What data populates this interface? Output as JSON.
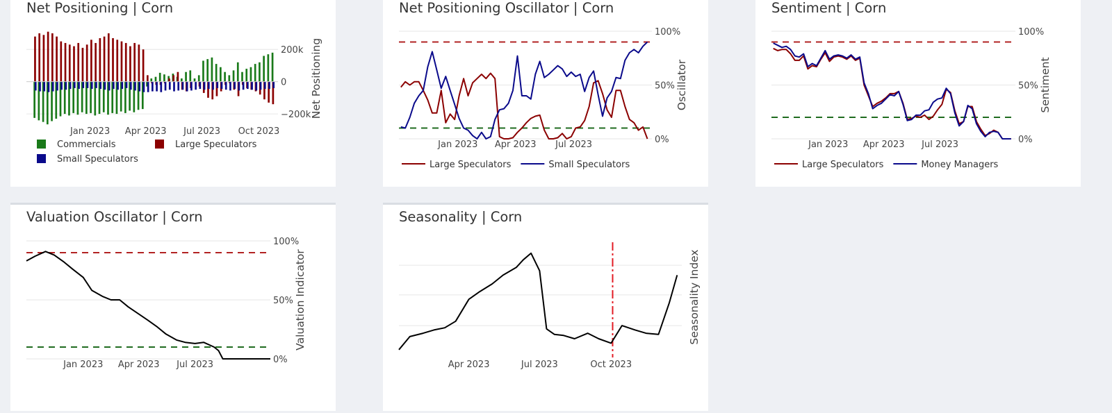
{
  "chart_data": [
    {
      "id": "net-positioning",
      "type": "bar",
      "title": "Net Positioning | Corn",
      "ylabel": "Net Positioning",
      "ylim": [
        -260000,
        300000
      ],
      "yticks": [
        {
          "v": 200000,
          "label": "200k"
        },
        {
          "v": 0,
          "label": "0"
        },
        {
          "v": -200000,
          "label": "−200k"
        }
      ],
      "xlim": [
        "2022-09-20",
        "2023-11-01"
      ],
      "xticks": [
        {
          "d": "2023-01-01",
          "label": "Jan 2023"
        },
        {
          "d": "2023-04-01",
          "label": "Apr 2023"
        },
        {
          "d": "2023-07-01",
          "label": "Jul 2023"
        },
        {
          "d": "2023-10-01",
          "label": "Oct 2023"
        }
      ],
      "legend_position": "bottom",
      "dates": [
        "2022-10-04",
        "2022-10-11",
        "2022-10-18",
        "2022-10-25",
        "2022-11-01",
        "2022-11-08",
        "2022-11-15",
        "2022-11-22",
        "2022-11-29",
        "2022-12-06",
        "2022-12-13",
        "2022-12-20",
        "2022-12-27",
        "2023-01-03",
        "2023-01-10",
        "2023-01-17",
        "2023-01-24",
        "2023-01-31",
        "2023-02-07",
        "2023-02-14",
        "2023-02-21",
        "2023-02-28",
        "2023-03-07",
        "2023-03-14",
        "2023-03-21",
        "2023-03-28",
        "2023-04-04",
        "2023-04-11",
        "2023-04-18",
        "2023-04-25",
        "2023-05-02",
        "2023-05-09",
        "2023-05-16",
        "2023-05-23",
        "2023-05-30",
        "2023-06-06",
        "2023-06-13",
        "2023-06-20",
        "2023-06-27",
        "2023-07-04",
        "2023-07-11",
        "2023-07-18",
        "2023-07-25",
        "2023-08-01",
        "2023-08-08",
        "2023-08-15",
        "2023-08-22",
        "2023-08-29",
        "2023-09-05",
        "2023-09-12",
        "2023-09-19",
        "2023-09-26",
        "2023-10-03",
        "2023-10-10",
        "2023-10-17",
        "2023-10-24"
      ],
      "series": [
        {
          "name": "Commercials",
          "color": "#1a7a1a",
          "values": [
            -225000,
            -240000,
            -250000,
            -265000,
            -245000,
            -230000,
            -215000,
            -200000,
            -210000,
            -195000,
            -205000,
            -190000,
            -200000,
            -195000,
            -210000,
            -200000,
            -190000,
            -205000,
            -195000,
            -200000,
            -185000,
            -195000,
            -180000,
            -190000,
            -175000,
            -170000,
            -30000,
            20000,
            30000,
            55000,
            45000,
            35000,
            50000,
            30000,
            20000,
            60000,
            70000,
            20000,
            40000,
            130000,
            140000,
            150000,
            110000,
            90000,
            60000,
            40000,
            70000,
            120000,
            60000,
            80000,
            90000,
            110000,
            120000,
            160000,
            170000,
            180000
          ]
        },
        {
          "name": "Large Speculators",
          "color": "#8b0000",
          "values": [
            280000,
            300000,
            290000,
            310000,
            300000,
            280000,
            250000,
            240000,
            230000,
            220000,
            240000,
            210000,
            230000,
            260000,
            240000,
            270000,
            280000,
            300000,
            270000,
            260000,
            250000,
            240000,
            220000,
            240000,
            230000,
            200000,
            40000,
            -10000,
            -20000,
            -20000,
            -10000,
            20000,
            40000,
            60000,
            -50000,
            -60000,
            -40000,
            0,
            -30000,
            -70000,
            -100000,
            -110000,
            -90000,
            -60000,
            -20000,
            -10000,
            -50000,
            -90000,
            -20000,
            -40000,
            -50000,
            -60000,
            -80000,
            -110000,
            -130000,
            -140000
          ]
        },
        {
          "name": "Small Speculators",
          "color": "#0a0a8b",
          "values": [
            -55000,
            -60000,
            -60000,
            -65000,
            -60000,
            -55000,
            -50000,
            -50000,
            -45000,
            -40000,
            -45000,
            -40000,
            -40000,
            -45000,
            -40000,
            -45000,
            -50000,
            -55000,
            -45000,
            -50000,
            -45000,
            -40000,
            -50000,
            -55000,
            -60000,
            -65000,
            -65000,
            -60000,
            -60000,
            -65000,
            -55000,
            -50000,
            -60000,
            -55000,
            -50000,
            -60000,
            -55000,
            -50000,
            -45000,
            -50000,
            -45000,
            -50000,
            -40000,
            -45000,
            -50000,
            -55000,
            -45000,
            -55000,
            -50000,
            -45000,
            -50000,
            -55000,
            -50000,
            -45000,
            -45000,
            -40000
          ]
        }
      ]
    },
    {
      "id": "net-positioning-oscillator",
      "type": "line",
      "title": "Net Positioning Oscillator | Corn",
      "ylabel": "Oscillator",
      "ylim": [
        0,
        100
      ],
      "yticks": [
        {
          "v": 100,
          "label": "100%"
        },
        {
          "v": 50,
          "label": "50%"
        },
        {
          "v": 0,
          "label": "0%"
        }
      ],
      "xlim": [
        "2022-10-01",
        "2023-10-31"
      ],
      "xticks": [
        {
          "d": "2023-01-01",
          "label": "Jan 2023"
        },
        {
          "d": "2023-04-01",
          "label": "Apr 2023"
        },
        {
          "d": "2023-07-01",
          "label": "Jul 2023"
        }
      ],
      "hlines": [
        {
          "v": 90,
          "color": "#b22222"
        },
        {
          "v": 10,
          "color": "#1f6b1f"
        }
      ],
      "legend_position": "bottom",
      "x": [
        "2022-10-04",
        "2022-10-11",
        "2022-10-18",
        "2022-10-25",
        "2022-11-01",
        "2022-11-08",
        "2022-11-15",
        "2022-11-22",
        "2022-11-29",
        "2022-12-06",
        "2022-12-13",
        "2022-12-20",
        "2022-12-27",
        "2023-01-03",
        "2023-01-10",
        "2023-01-17",
        "2023-01-24",
        "2023-01-31",
        "2023-02-07",
        "2023-02-14",
        "2023-02-21",
        "2023-02-28",
        "2023-03-07",
        "2023-03-14",
        "2023-03-21",
        "2023-03-28",
        "2023-04-04",
        "2023-04-11",
        "2023-04-18",
        "2023-04-25",
        "2023-05-02",
        "2023-05-09",
        "2023-05-16",
        "2023-05-23",
        "2023-05-30",
        "2023-06-06",
        "2023-06-13",
        "2023-06-20",
        "2023-06-27",
        "2023-07-04",
        "2023-07-11",
        "2023-07-18",
        "2023-07-25",
        "2023-08-01",
        "2023-08-08",
        "2023-08-15",
        "2023-08-22",
        "2023-08-29",
        "2023-09-05",
        "2023-09-12",
        "2023-09-19",
        "2023-09-26",
        "2023-10-03",
        "2023-10-10",
        "2023-10-17",
        "2023-10-24"
      ],
      "series": [
        {
          "name": "Large Speculators",
          "color": "#8b0000",
          "values": [
            48,
            53,
            50,
            53,
            53,
            45,
            36,
            24,
            24,
            45,
            15,
            23,
            18,
            40,
            56,
            40,
            52,
            56,
            60,
            56,
            61,
            56,
            2,
            0,
            0,
            1,
            6,
            10,
            15,
            19,
            21,
            22,
            8,
            0,
            0,
            1,
            5,
            0,
            2,
            10,
            11,
            17,
            30,
            52,
            54,
            42,
            27,
            20,
            45,
            45,
            30,
            18,
            15,
            8,
            11,
            0
          ]
        },
        {
          "name": "Small Speculators",
          "color": "#0a0a8b",
          "values": [
            11,
            10,
            20,
            33,
            40,
            45,
            67,
            81,
            64,
            47,
            58,
            45,
            32,
            19,
            10,
            8,
            3,
            0,
            6,
            0,
            2,
            18,
            27,
            28,
            33,
            45,
            77,
            40,
            40,
            37,
            60,
            72,
            57,
            60,
            64,
            68,
            65,
            58,
            62,
            58,
            60,
            44,
            57,
            63,
            41,
            21,
            38,
            44,
            57,
            56,
            73,
            80,
            83,
            80,
            86,
            90
          ]
        }
      ]
    },
    {
      "id": "sentiment",
      "type": "line",
      "title": "Sentiment | Corn",
      "ylabel": "Sentiment",
      "ylim": [
        0,
        100
      ],
      "yticks": [
        {
          "v": 100,
          "label": "100%"
        },
        {
          "v": 50,
          "label": "50%"
        },
        {
          "v": 0,
          "label": "0%"
        }
      ],
      "xlim": [
        "2022-10-01",
        "2023-10-31"
      ],
      "xticks": [
        {
          "d": "2023-01-01",
          "label": "Jan 2023"
        },
        {
          "d": "2023-04-01",
          "label": "Apr 2023"
        },
        {
          "d": "2023-07-01",
          "label": "Jul 2023"
        }
      ],
      "hlines": [
        {
          "v": 90,
          "color": "#b22222"
        },
        {
          "v": 20,
          "color": "#1f6b1f"
        }
      ],
      "legend_position": "bottom",
      "x": [
        "2022-10-04",
        "2022-10-11",
        "2022-10-18",
        "2022-10-25",
        "2022-11-01",
        "2022-11-08",
        "2022-11-15",
        "2022-11-22",
        "2022-11-29",
        "2022-12-06",
        "2022-12-13",
        "2022-12-20",
        "2022-12-27",
        "2023-01-03",
        "2023-01-10",
        "2023-01-17",
        "2023-01-24",
        "2023-01-31",
        "2023-02-07",
        "2023-02-14",
        "2023-02-21",
        "2023-02-28",
        "2023-03-07",
        "2023-03-14",
        "2023-03-21",
        "2023-03-28",
        "2023-04-04",
        "2023-04-11",
        "2023-04-18",
        "2023-04-25",
        "2023-05-02",
        "2023-05-09",
        "2023-05-16",
        "2023-05-23",
        "2023-05-30",
        "2023-06-06",
        "2023-06-13",
        "2023-06-20",
        "2023-06-27",
        "2023-07-04",
        "2023-07-11",
        "2023-07-18",
        "2023-07-25",
        "2023-08-01",
        "2023-08-08",
        "2023-08-15",
        "2023-08-22",
        "2023-08-29",
        "2023-09-05",
        "2023-09-12",
        "2023-09-19",
        "2023-09-26",
        "2023-10-03",
        "2023-10-10",
        "2023-10-17",
        "2023-10-24"
      ],
      "series": [
        {
          "name": "Large Speculators",
          "color": "#8b0000",
          "values": [
            84,
            82,
            83,
            83,
            79,
            73,
            73,
            77,
            65,
            68,
            67,
            74,
            80,
            72,
            76,
            77,
            76,
            74,
            77,
            73,
            75,
            50,
            40,
            30,
            33,
            35,
            38,
            42,
            42,
            44,
            33,
            18,
            19,
            21,
            20,
            22,
            18,
            21,
            27,
            32,
            46,
            43,
            26,
            14,
            16,
            30,
            30,
            16,
            9,
            3,
            5,
            8,
            6,
            0,
            0,
            0
          ]
        },
        {
          "name": "Money Managers",
          "color": "#0a0a8b",
          "values": [
            89,
            87,
            85,
            86,
            83,
            77,
            76,
            79,
            67,
            70,
            68,
            75,
            82,
            74,
            77,
            78,
            77,
            75,
            78,
            74,
            76,
            52,
            42,
            28,
            31,
            33,
            37,
            41,
            40,
            44,
            32,
            17,
            18,
            22,
            22,
            26,
            27,
            34,
            37,
            38,
            47,
            42,
            24,
            12,
            16,
            31,
            28,
            14,
            7,
            2,
            6,
            7,
            6,
            0,
            0,
            0
          ]
        }
      ]
    },
    {
      "id": "valuation-oscillator",
      "type": "line",
      "title": "Valuation Oscillator | Corn",
      "ylabel": "Valuation Indicator",
      "ylim": [
        0,
        100
      ],
      "yticks": [
        {
          "v": 100,
          "label": "100%"
        },
        {
          "v": 50,
          "label": "50%"
        },
        {
          "v": 0,
          "label": "0%"
        }
      ],
      "xlim": [
        "2022-10-01",
        "2023-10-31"
      ],
      "xticks": [
        {
          "d": "2023-01-01",
          "label": "Jan 2023"
        },
        {
          "d": "2023-04-01",
          "label": "Apr 2023"
        },
        {
          "d": "2023-07-01",
          "label": "Jul 2023"
        }
      ],
      "hlines": [
        {
          "v": 90,
          "color": "#b22222"
        },
        {
          "v": 10,
          "color": "#1f6b1f"
        }
      ],
      "legend_position": "none",
      "x": [
        "2022-10-01",
        "2022-10-15",
        "2022-11-01",
        "2022-11-15",
        "2022-12-01",
        "2022-12-15",
        "2023-01-01",
        "2023-01-15",
        "2023-02-01",
        "2023-02-15",
        "2023-03-01",
        "2023-03-15",
        "2023-04-01",
        "2023-04-15",
        "2023-05-01",
        "2023-05-15",
        "2023-06-01",
        "2023-06-15",
        "2023-07-01",
        "2023-07-15",
        "2023-08-01",
        "2023-08-08",
        "2023-08-15",
        "2023-09-01",
        "2023-10-01",
        "2023-10-31"
      ],
      "series": [
        {
          "name": "",
          "color": "#000000",
          "values": [
            83,
            87,
            91,
            88,
            82,
            76,
            69,
            58,
            53,
            50,
            50,
            44,
            38,
            33,
            27,
            21,
            16,
            14,
            13,
            14,
            10,
            7,
            0,
            0,
            0,
            0
          ]
        }
      ]
    },
    {
      "id": "seasonality",
      "type": "line",
      "title": "Seasonality | Corn",
      "ylabel": "Seasonality Index",
      "ylim": [
        0,
        100
      ],
      "yticks": [],
      "gridlines": [
        24,
        52,
        79
      ],
      "xlim": [
        "2023-01-01",
        "2023-12-31"
      ],
      "xticks": [
        {
          "d": "2023-04-01",
          "label": "Apr 2023"
        },
        {
          "d": "2023-07-01",
          "label": "Jul 2023"
        },
        {
          "d": "2023-10-01",
          "label": "Oct 2023"
        }
      ],
      "vline": {
        "d": "2023-10-03",
        "color": "#e31b23"
      },
      "legend_position": "none",
      "x": [
        "2023-01-01",
        "2023-01-15",
        "2023-02-01",
        "2023-02-15",
        "2023-03-01",
        "2023-03-15",
        "2023-04-01",
        "2023-04-15",
        "2023-05-01",
        "2023-05-15",
        "2023-06-01",
        "2023-06-10",
        "2023-06-20",
        "2023-07-01",
        "2023-07-10",
        "2023-07-20",
        "2023-08-01",
        "2023-08-15",
        "2023-09-01",
        "2023-09-15",
        "2023-10-01",
        "2023-10-15",
        "2023-11-01",
        "2023-11-15",
        "2023-12-01",
        "2023-12-15",
        "2023-12-25"
      ],
      "series": [
        {
          "name": "",
          "color": "#000000",
          "values": [
            2,
            14,
            17,
            20,
            22,
            28,
            48,
            55,
            62,
            70,
            77,
            84,
            90,
            74,
            21,
            16,
            15,
            12,
            17,
            12,
            8,
            24,
            20,
            17,
            16,
            45,
            70
          ]
        }
      ]
    }
  ]
}
